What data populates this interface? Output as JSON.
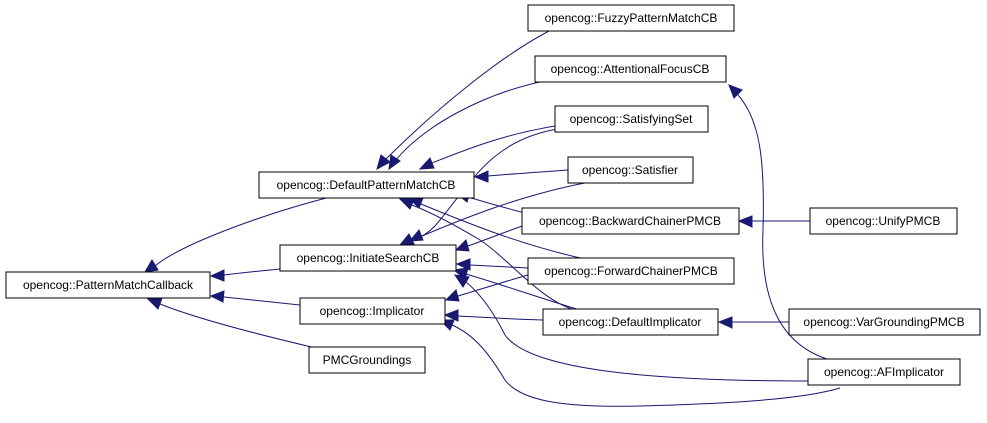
{
  "diagram": {
    "kind": "class inheritance graph",
    "colors": {
      "edge": "#191970",
      "node_border": "#000000",
      "node_fill": "#ffffff",
      "background": "#ffffff"
    },
    "nodes": {
      "pmc": "opencog::PatternMatchCallback",
      "dpmcb": "opencog::DefaultPatternMatchCB",
      "iscb": "opencog::InitiateSearchCB",
      "impl": "opencog::Implicator",
      "pmcg": "PMCGroundings",
      "fuzzy": "opencog::FuzzyPatternMatchCB",
      "afcb": "opencog::AttentionalFocusCB",
      "satset": "opencog::SatisfyingSet",
      "satisfier": "opencog::Satisfier",
      "bcpmcb": "opencog::BackwardChainerPMCB",
      "fcpmcb": "opencog::ForwardChainerPMCB",
      "defimpl": "opencog::DefaultImplicator",
      "unify": "opencog::UnifyPMCB",
      "vargr": "opencog::VarGroundingPMCB",
      "afimpl": "opencog::AFImplicator"
    },
    "edges": [
      {
        "from": "dpmcb",
        "to": "pmc"
      },
      {
        "from": "iscb",
        "to": "pmc"
      },
      {
        "from": "impl",
        "to": "pmc"
      },
      {
        "from": "pmcg",
        "to": "pmc"
      },
      {
        "from": "fuzzy",
        "to": "dpmcb"
      },
      {
        "from": "afcb",
        "to": "dpmcb"
      },
      {
        "from": "satset",
        "to": "dpmcb"
      },
      {
        "from": "satisfier",
        "to": "dpmcb"
      },
      {
        "from": "bcpmcb",
        "to": "dpmcb"
      },
      {
        "from": "fcpmcb",
        "to": "dpmcb"
      },
      {
        "from": "defimpl",
        "to": "dpmcb"
      },
      {
        "from": "satset",
        "to": "iscb"
      },
      {
        "from": "satisfier",
        "to": "iscb"
      },
      {
        "from": "bcpmcb",
        "to": "iscb"
      },
      {
        "from": "fcpmcb",
        "to": "iscb"
      },
      {
        "from": "defimpl",
        "to": "iscb"
      },
      {
        "from": "afimpl",
        "to": "iscb"
      },
      {
        "from": "fcpmcb",
        "to": "impl"
      },
      {
        "from": "defimpl",
        "to": "impl"
      },
      {
        "from": "afimpl",
        "to": "impl"
      },
      {
        "from": "unify",
        "to": "bcpmcb"
      },
      {
        "from": "vargr",
        "to": "defimpl"
      },
      {
        "from": "afimpl",
        "to": "afcb"
      }
    ]
  }
}
